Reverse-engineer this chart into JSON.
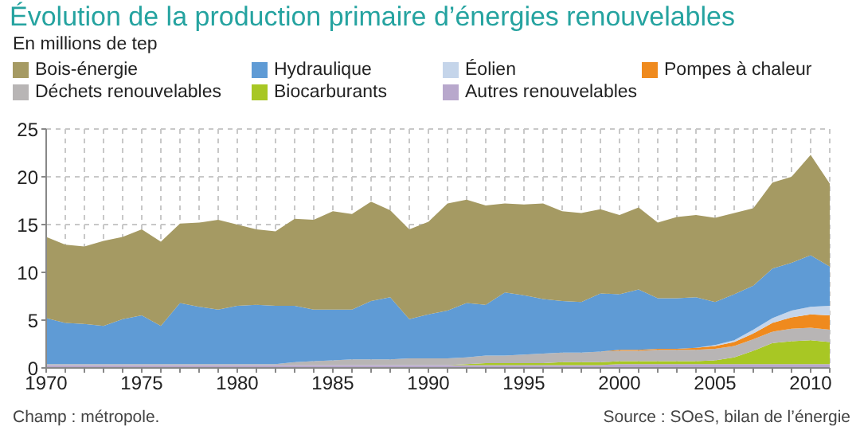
{
  "chart_data": {
    "type": "area",
    "stacked": true,
    "title": "Évolution de la production primaire d’énergies renouvelables",
    "subtitle": "En millions de tep",
    "legend": "top",
    "grid": true,
    "x": [
      1970,
      1971,
      1972,
      1973,
      1974,
      1975,
      1976,
      1977,
      1978,
      1979,
      1980,
      1981,
      1982,
      1983,
      1984,
      1985,
      1986,
      1987,
      1988,
      1989,
      1990,
      1991,
      1992,
      1993,
      1994,
      1995,
      1996,
      1997,
      1998,
      1999,
      2000,
      2001,
      2002,
      2003,
      2004,
      2005,
      2006,
      2007,
      2008,
      2009,
      2010,
      2011
    ],
    "series": [
      {
        "name": "Autres renouvelables",
        "color": "#b8a8cc",
        "values": [
          0.3,
          0.3,
          0.3,
          0.3,
          0.3,
          0.3,
          0.3,
          0.3,
          0.3,
          0.3,
          0.3,
          0.3,
          0.3,
          0.3,
          0.3,
          0.3,
          0.3,
          0.3,
          0.3,
          0.3,
          0.3,
          0.3,
          0.3,
          0.3,
          0.3,
          0.3,
          0.3,
          0.3,
          0.3,
          0.3,
          0.4,
          0.4,
          0.4,
          0.4,
          0.4,
          0.4,
          0.4,
          0.4,
          0.4,
          0.4,
          0.4,
          0.4
        ]
      },
      {
        "name": "Biocarburants",
        "color": "#a8c724",
        "values": [
          0,
          0,
          0,
          0,
          0,
          0,
          0,
          0,
          0,
          0,
          0,
          0,
          0,
          0,
          0,
          0,
          0,
          0,
          0,
          0,
          0,
          0,
          0.1,
          0.2,
          0.2,
          0.2,
          0.2,
          0.3,
          0.3,
          0.3,
          0.3,
          0.3,
          0.3,
          0.3,
          0.3,
          0.4,
          0.7,
          1.4,
          2.2,
          2.4,
          2.5,
          2.3
        ]
      },
      {
        "name": "Déchets renouvelables",
        "color": "#b8b5b5",
        "values": [
          0.1,
          0.1,
          0.1,
          0.1,
          0.1,
          0.1,
          0.1,
          0.1,
          0.1,
          0.1,
          0.1,
          0.1,
          0.1,
          0.3,
          0.4,
          0.5,
          0.6,
          0.6,
          0.6,
          0.7,
          0.7,
          0.7,
          0.7,
          0.8,
          0.8,
          0.9,
          1.0,
          1.0,
          1.0,
          1.1,
          1.1,
          1.1,
          1.2,
          1.2,
          1.2,
          1.2,
          1.2,
          1.2,
          1.2,
          1.3,
          1.3,
          1.3
        ]
      },
      {
        "name": "Pompes à chaleur",
        "color": "#ef8a1e",
        "values": [
          0,
          0,
          0,
          0,
          0,
          0,
          0,
          0,
          0,
          0,
          0,
          0,
          0,
          0,
          0,
          0,
          0,
          0,
          0,
          0,
          0,
          0,
          0,
          0,
          0,
          0,
          0,
          0,
          0,
          0,
          0.1,
          0.1,
          0.1,
          0.1,
          0.2,
          0.3,
          0.4,
          0.6,
          0.9,
          1.2,
          1.4,
          1.5
        ]
      },
      {
        "name": "Éolien",
        "color": "#c5d5ea",
        "values": [
          0,
          0,
          0,
          0,
          0,
          0,
          0,
          0,
          0,
          0,
          0,
          0,
          0,
          0,
          0,
          0,
          0,
          0,
          0,
          0,
          0,
          0,
          0,
          0,
          0,
          0,
          0,
          0,
          0,
          0,
          0,
          0,
          0,
          0,
          0,
          0.1,
          0.2,
          0.4,
          0.5,
          0.7,
          0.8,
          1.0
        ]
      },
      {
        "name": "Hydraulique",
        "color": "#5f9bd5",
        "values": [
          4.8,
          4.3,
          4.2,
          4.0,
          4.7,
          5.1,
          4.0,
          6.4,
          6.0,
          5.7,
          6.1,
          6.2,
          6.1,
          5.9,
          5.4,
          5.3,
          5.2,
          6.1,
          6.5,
          4.1,
          4.6,
          5.0,
          5.7,
          5.3,
          6.6,
          6.2,
          5.7,
          5.4,
          5.3,
          6.1,
          5.8,
          6.3,
          5.3,
          5.3,
          5.3,
          4.5,
          4.8,
          4.6,
          5.2,
          5.0,
          5.4,
          4.1
        ]
      },
      {
        "name": "Bois-énergie",
        "color": "#a59a63",
        "values": [
          8.5,
          8.2,
          8.1,
          8.9,
          8.6,
          9.0,
          8.8,
          8.3,
          8.8,
          9.4,
          8.5,
          7.9,
          7.8,
          9.1,
          9.4,
          10.3,
          10.0,
          10.4,
          9.1,
          9.4,
          9.7,
          11.2,
          10.8,
          10.4,
          9.3,
          9.5,
          10.0,
          9.4,
          9.3,
          8.8,
          8.3,
          8.6,
          7.9,
          8.5,
          8.6,
          8.8,
          8.5,
          8.1,
          9.0,
          9.0,
          10.5,
          8.7
        ]
      }
    ],
    "xlim": [
      1970,
      2011
    ],
    "xticks": [
      1970,
      {
        "value": 1971,
        "label": null
      },
      {
        "value": 1972,
        "label": null
      },
      {
        "value": 1973,
        "label": null
      },
      {
        "value": 1974,
        "label": null
      },
      1975,
      {
        "value": 1976,
        "label": null
      },
      {
        "value": 1977,
        "label": null
      },
      {
        "value": 1978,
        "label": null
      },
      {
        "value": 1979,
        "label": null
      },
      1980,
      {
        "value": 1981,
        "label": null
      },
      {
        "value": 1982,
        "label": null
      },
      {
        "value": 1983,
        "label": null
      },
      {
        "value": 1984,
        "label": null
      },
      1985,
      {
        "value": 1986,
        "label": null
      },
      {
        "value": 1987,
        "label": null
      },
      {
        "value": 1988,
        "label": null
      },
      {
        "value": 1989,
        "label": null
      },
      1990,
      {
        "value": 1991,
        "label": null
      },
      {
        "value": 1992,
        "label": null
      },
      {
        "value": 1993,
        "label": null
      },
      {
        "value": 1994,
        "label": null
      },
      1995,
      {
        "value": 1996,
        "label": null
      },
      {
        "value": 1997,
        "label": null
      },
      {
        "value": 1998,
        "label": null
      },
      {
        "value": 1999,
        "label": null
      },
      2000,
      {
        "value": 2001,
        "label": null
      },
      {
        "value": 2002,
        "label": null
      },
      {
        "value": 2003,
        "label": null
      },
      {
        "value": 2004,
        "label": null
      },
      2005,
      {
        "value": 2006,
        "label": null
      },
      {
        "value": 2007,
        "label": null
      },
      {
        "value": 2008,
        "label": null
      },
      {
        "value": 2009,
        "label": null
      },
      2010,
      {
        "value": 2011,
        "label": null
      }
    ],
    "ylim": [
      0,
      25
    ],
    "yticks": [
      0,
      5,
      10,
      15,
      20,
      25
    ],
    "annotations": [
      "Champ : métropole.",
      "Source : SOeS, bilan de l’énergie"
    ]
  }
}
